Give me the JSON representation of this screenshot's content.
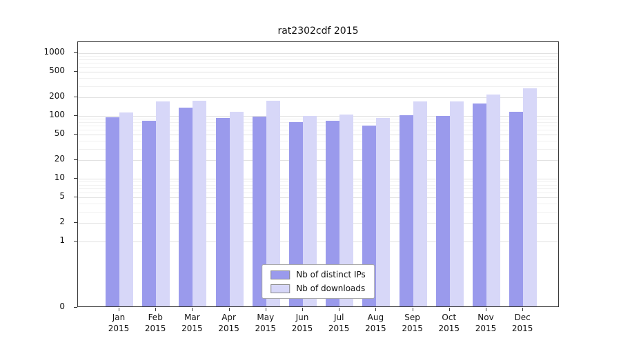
{
  "title": "rat2302cdf 2015",
  "chart_data": {
    "type": "bar",
    "title": "rat2302cdf 2015",
    "yscale": "symlog",
    "grid": true,
    "legend_position": "lower center",
    "ylim": [
      0,
      1000
    ],
    "yticks": [
      0,
      1,
      2,
      5,
      10,
      20,
      50,
      100,
      200,
      500,
      1000
    ],
    "categories": [
      "Jan 2015",
      "Feb 2015",
      "Mar 2015",
      "Apr 2015",
      "May 2015",
      "Jun 2015",
      "Jul 2015",
      "Aug 2015",
      "Sep 2015",
      "Oct 2015",
      "Nov 2015",
      "Dec 2015"
    ],
    "series": [
      {
        "name": "Nb of distinct IPs",
        "color": "#9a9aec",
        "values": [
          90,
          80,
          128,
          89,
          93,
          75,
          80,
          67,
          97,
          96,
          150,
          112
        ]
      },
      {
        "name": "Nb of downloads",
        "color": "#d7d7f8",
        "values": [
          107,
          160,
          168,
          110,
          168,
          95,
          99,
          88,
          160,
          163,
          210,
          260
        ]
      }
    ]
  },
  "legend": {
    "items": [
      {
        "label": "Nb of distinct IPs"
      },
      {
        "label": "Nb of downloads"
      }
    ]
  }
}
